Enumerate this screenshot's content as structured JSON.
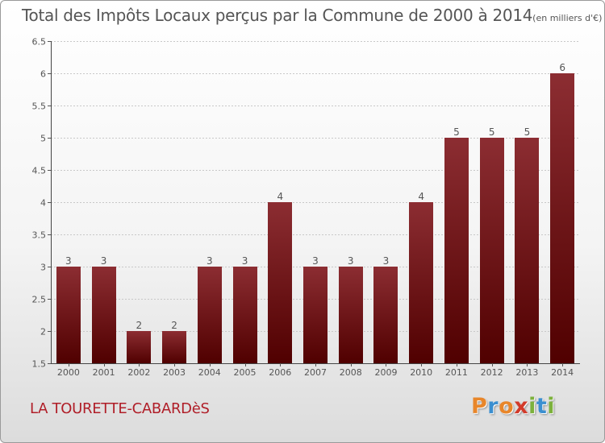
{
  "title": {
    "main": "Total des Impôts Locaux perçus par la Commune de 2000 à 2014",
    "unit": "(en milliers d'€)"
  },
  "commune_name": "LA TOURETTE-CABARDèS",
  "logo": {
    "text": "Proxiti",
    "letters": [
      {
        "char": "P",
        "color": "#e8862a"
      },
      {
        "char": "r",
        "color": "#3b8fd0"
      },
      {
        "char": "o",
        "color": "#e8862a"
      },
      {
        "char": "x",
        "color": "#d23a2a"
      },
      {
        "char": "i",
        "color": "#7cb13c"
      },
      {
        "char": "t",
        "color": "#3b8fd0"
      },
      {
        "char": "i",
        "color": "#7cb13c"
      }
    ]
  },
  "colors": {
    "bar_top": "#8c2d32",
    "bar_bottom": "#500000",
    "grid": "#c8c8c8",
    "text": "#555555",
    "commune": "#b01e28"
  },
  "chart_data": {
    "type": "bar",
    "title": "Total des Impôts Locaux perçus par la Commune de 2000 à 2014",
    "xlabel": "",
    "ylabel": "",
    "categories": [
      "2000",
      "2001",
      "2002",
      "2003",
      "2004",
      "2005",
      "2006",
      "2007",
      "2008",
      "2009",
      "2010",
      "2011",
      "2012",
      "2013",
      "2014"
    ],
    "values": [
      3,
      3,
      2,
      2,
      3,
      3,
      4,
      3,
      3,
      3,
      4,
      5,
      5,
      5,
      6
    ],
    "data_labels": [
      "3",
      "3",
      "2",
      "2",
      "3",
      "3",
      "4",
      "3",
      "3",
      "3",
      "4",
      "5",
      "5",
      "5",
      "6"
    ],
    "ylim": [
      1.5,
      6.5
    ],
    "yticks": [
      1.5,
      2,
      2.5,
      3,
      3.5,
      4,
      4.5,
      5,
      5.5,
      6,
      6.5
    ],
    "ytick_labels": [
      "1.5",
      "2",
      "2.5",
      "3",
      "3.5",
      "4",
      "4.5",
      "5",
      "5.5",
      "6",
      "6.5"
    ],
    "grid": true,
    "grid_style": "dotted horizontal"
  }
}
